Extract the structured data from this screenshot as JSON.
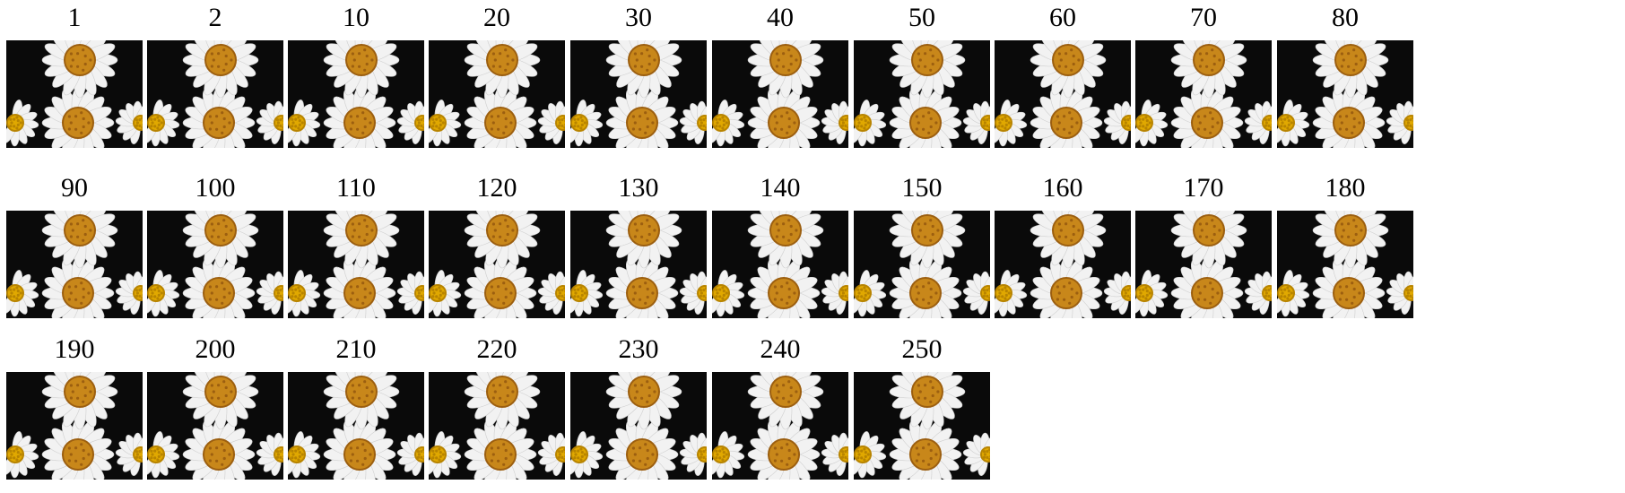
{
  "frames": [
    {
      "label": "1"
    },
    {
      "label": "2"
    },
    {
      "label": "10"
    },
    {
      "label": "20"
    },
    {
      "label": "30"
    },
    {
      "label": "40"
    },
    {
      "label": "50"
    },
    {
      "label": "60"
    },
    {
      "label": "70"
    },
    {
      "label": "80"
    },
    {
      "label": "90"
    },
    {
      "label": "100"
    },
    {
      "label": "110"
    },
    {
      "label": "120"
    },
    {
      "label": "130"
    },
    {
      "label": "140"
    },
    {
      "label": "150"
    },
    {
      "label": "160"
    },
    {
      "label": "170"
    },
    {
      "label": "180"
    },
    {
      "label": "190"
    },
    {
      "label": "200"
    },
    {
      "label": "210"
    },
    {
      "label": "220"
    },
    {
      "label": "230"
    },
    {
      "label": "240"
    },
    {
      "label": "250"
    }
  ],
  "image_subject": "daisy-flowers",
  "colors": {
    "background": "#ffffff",
    "label_text": "#000000",
    "petal": "#f2f2f2",
    "flower_center": "#c8871a",
    "flower_center_dark": "#9c5f10",
    "side_flower_center": "#e0a800",
    "backdrop": "#0a0a0a"
  }
}
